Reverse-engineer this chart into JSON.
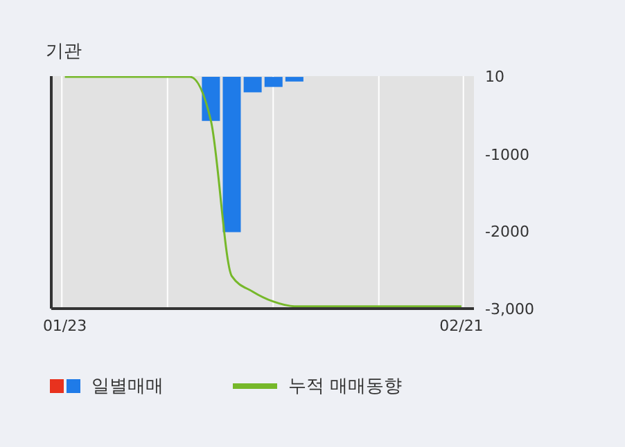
{
  "chart_data": {
    "type": "bar",
    "title": "기관",
    "categories": [
      "01/23",
      null,
      null,
      null,
      null,
      null,
      null,
      null,
      null,
      null,
      null,
      null,
      null,
      null,
      null,
      null,
      null,
      null,
      null,
      "02/21"
    ],
    "series": [
      {
        "name": "일별매매",
        "color": "#1f7be8",
        "values": [
          null,
          null,
          null,
          null,
          null,
          null,
          null,
          -570,
          -2010,
          -200,
          -130,
          -60,
          null,
          null,
          null,
          null,
          null,
          null,
          null,
          null
        ]
      },
      {
        "name": "누적 매매동향",
        "type": "line",
        "color": "#76b82a",
        "values": [
          0,
          0,
          0,
          0,
          0,
          0,
          0,
          -570,
          -2580,
          -2780,
          -2910,
          -2970,
          -2970,
          -2970,
          -2970,
          -2970,
          -2970,
          -2970,
          -2970,
          -2970
        ]
      }
    ],
    "ylim": [
      -3000,
      10
    ],
    "yticks": [
      10,
      -1000,
      -2000,
      {
        "value": -3000,
        "label": "-3,000"
      }
    ],
    "grid": true,
    "legend": "bottom",
    "marker": "none"
  }
}
